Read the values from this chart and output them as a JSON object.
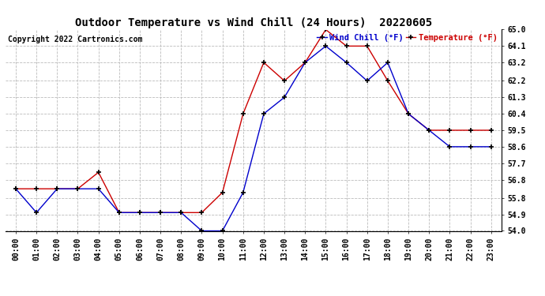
{
  "title": "Outdoor Temperature vs Wind Chill (24 Hours)  20220605",
  "copyright_text": "Copyright 2022 Cartronics.com",
  "legend_wind_chill": "Wind Chill (°F)",
  "legend_temperature": "Temperature (°F)",
  "x_labels": [
    "00:00",
    "01:00",
    "02:00",
    "03:00",
    "04:00",
    "05:00",
    "06:00",
    "07:00",
    "08:00",
    "09:00",
    "10:00",
    "11:00",
    "12:00",
    "13:00",
    "14:00",
    "15:00",
    "16:00",
    "17:00",
    "18:00",
    "19:00",
    "20:00",
    "21:00",
    "22:00",
    "23:00"
  ],
  "temperature": [
    56.3,
    56.3,
    56.3,
    56.3,
    57.2,
    55.0,
    55.0,
    55.0,
    55.0,
    55.0,
    56.1,
    60.4,
    63.2,
    62.2,
    63.2,
    65.0,
    64.1,
    64.1,
    62.2,
    60.4,
    59.5,
    59.5,
    59.5,
    59.5
  ],
  "wind_chill": [
    56.3,
    55.0,
    56.3,
    56.3,
    56.3,
    55.0,
    55.0,
    55.0,
    55.0,
    54.0,
    54.0,
    56.1,
    60.4,
    61.3,
    63.2,
    64.1,
    63.2,
    62.2,
    63.2,
    60.4,
    59.5,
    58.6,
    58.6,
    58.6
  ],
  "temp_color": "#cc0000",
  "wind_chill_color": "#0000cc",
  "background_color": "#ffffff",
  "grid_color": "#bbbbbb",
  "ylim_min": 54.0,
  "ylim_max": 65.0,
  "yticks": [
    54.0,
    54.9,
    55.8,
    56.8,
    57.7,
    58.6,
    59.5,
    60.4,
    61.3,
    62.2,
    63.2,
    64.1,
    65.0
  ],
  "title_fontsize": 10,
  "tick_fontsize": 7,
  "copyright_fontsize": 7,
  "legend_fontsize": 7.5
}
